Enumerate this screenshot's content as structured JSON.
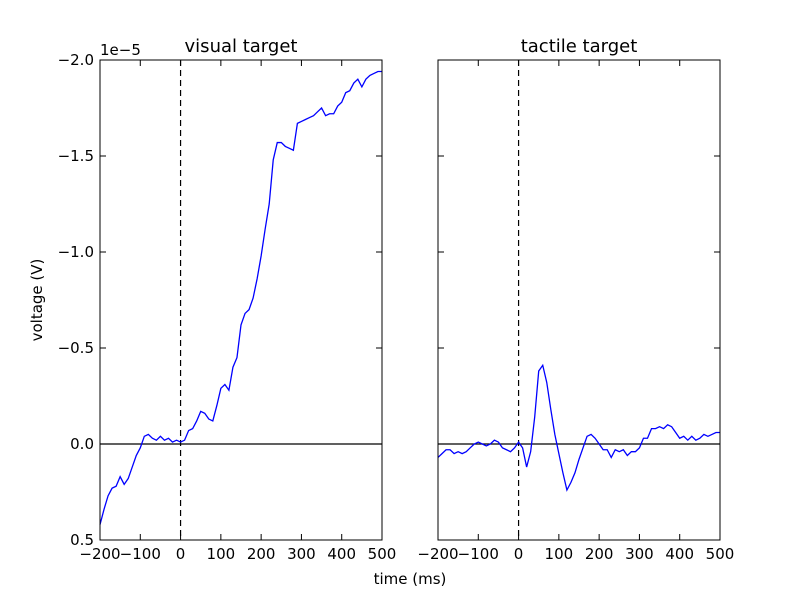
{
  "chart_data": [
    {
      "type": "line",
      "title": "visual target",
      "xlabel": "time (ms)",
      "ylabel": "voltage (V)",
      "y_offset_label": "1e−5",
      "xlim": [
        -200,
        500
      ],
      "ylim": [
        0.5,
        -2.0
      ],
      "y_scale_factor": 1e-05,
      "y_inverted": true,
      "xticks": [
        -200,
        -100,
        0,
        100,
        200,
        300,
        400,
        500
      ],
      "xtick_labels": [
        "−200",
        "−100",
        "0",
        "100",
        "200",
        "300",
        "400",
        "500"
      ],
      "yticks": [
        -2.0,
        -1.5,
        -1.0,
        -0.5,
        0.0,
        0.5
      ],
      "ytick_labels": [
        "−2.0",
        "−1.5",
        "−1.0",
        "−0.5",
        "0.0",
        "0.5"
      ],
      "grid": false,
      "reference_lines": {
        "horizontal_y": 0.0,
        "vertical_dashed_x": 0
      },
      "line_color": "#0000ff",
      "series": [
        {
          "x": [
            -200,
            -190,
            -180,
            -170,
            -160,
            -150,
            -140,
            -130,
            -120,
            -110,
            -100,
            -90,
            -80,
            -70,
            -60,
            -50,
            -40,
            -30,
            -20,
            -10,
            0,
            10,
            20,
            30,
            40,
            50,
            60,
            70,
            80,
            90,
            100,
            110,
            120,
            130,
            140,
            150,
            160,
            170,
            180,
            190,
            200,
            210,
            220,
            230,
            240,
            250,
            260,
            270,
            280,
            290,
            300,
            310,
            320,
            330,
            340,
            350,
            360,
            370,
            380,
            390,
            400,
            410,
            420,
            430,
            440,
            450,
            460,
            470,
            480,
            490,
            500
          ],
          "y": [
            0.42,
            0.34,
            0.27,
            0.23,
            0.22,
            0.17,
            0.21,
            0.18,
            0.12,
            0.06,
            0.02,
            -0.04,
            -0.05,
            -0.03,
            -0.02,
            -0.04,
            -0.02,
            -0.03,
            -0.01,
            -0.02,
            -0.01,
            -0.02,
            -0.07,
            -0.08,
            -0.12,
            -0.17,
            -0.16,
            -0.13,
            -0.12,
            -0.2,
            -0.29,
            -0.31,
            -0.28,
            -0.4,
            -0.45,
            -0.62,
            -0.68,
            -0.7,
            -0.76,
            -0.86,
            -0.98,
            -1.12,
            -1.25,
            -1.48,
            -1.57,
            -1.57,
            -1.55,
            -1.54,
            -1.53,
            -1.67,
            -1.68,
            -1.69,
            -1.7,
            -1.71,
            -1.73,
            -1.75,
            -1.71,
            -1.72,
            -1.72,
            -1.76,
            -1.78,
            -1.83,
            -1.84,
            -1.88,
            -1.9,
            -1.86,
            -1.9,
            -1.92,
            -1.93,
            -1.94,
            -1.94
          ]
        }
      ]
    },
    {
      "type": "line",
      "title": "tactile target",
      "xlim": [
        -200,
        500
      ],
      "ylim": [
        0.5,
        -2.0
      ],
      "y_scale_factor": 1e-05,
      "y_inverted": true,
      "xticks": [
        -200,
        -100,
        0,
        100,
        200,
        300,
        400,
        500
      ],
      "xtick_labels": [
        "−200",
        "−100",
        "0",
        "100",
        "200",
        "300",
        "400",
        "500"
      ],
      "yticks": [
        -2.0,
        -1.5,
        -1.0,
        -0.5,
        0.0,
        0.5
      ],
      "ytick_labels_visible": false,
      "grid": false,
      "reference_lines": {
        "horizontal_y": 0.0,
        "vertical_dashed_x": 0
      },
      "line_color": "#0000ff",
      "series": [
        {
          "x": [
            -200,
            -190,
            -180,
            -170,
            -160,
            -150,
            -140,
            -130,
            -120,
            -110,
            -100,
            -90,
            -80,
            -70,
            -60,
            -50,
            -40,
            -30,
            -20,
            -10,
            0,
            10,
            20,
            30,
            40,
            50,
            60,
            70,
            80,
            90,
            100,
            110,
            120,
            130,
            140,
            150,
            160,
            170,
            180,
            190,
            200,
            210,
            220,
            230,
            240,
            250,
            260,
            270,
            280,
            290,
            300,
            310,
            320,
            330,
            340,
            350,
            360,
            370,
            380,
            390,
            400,
            410,
            420,
            430,
            440,
            450,
            460,
            470,
            480,
            490,
            500
          ],
          "y": [
            0.07,
            0.05,
            0.03,
            0.03,
            0.05,
            0.04,
            0.05,
            0.04,
            0.02,
            0.0,
            -0.01,
            0.0,
            0.01,
            0.0,
            -0.02,
            -0.01,
            0.02,
            0.03,
            0.04,
            0.02,
            -0.01,
            0.02,
            0.12,
            0.04,
            -0.14,
            -0.38,
            -0.41,
            -0.32,
            -0.18,
            -0.05,
            0.05,
            0.15,
            0.24,
            0.2,
            0.15,
            0.08,
            0.02,
            -0.04,
            -0.05,
            -0.03,
            0.0,
            0.03,
            0.03,
            0.07,
            0.03,
            0.04,
            0.03,
            0.06,
            0.04,
            0.04,
            0.02,
            -0.03,
            -0.03,
            -0.08,
            -0.08,
            -0.09,
            -0.08,
            -0.1,
            -0.09,
            -0.06,
            -0.03,
            -0.04,
            -0.02,
            -0.04,
            -0.02,
            -0.03,
            -0.05,
            -0.04,
            -0.05,
            -0.06,
            -0.06
          ]
        }
      ]
    }
  ]
}
